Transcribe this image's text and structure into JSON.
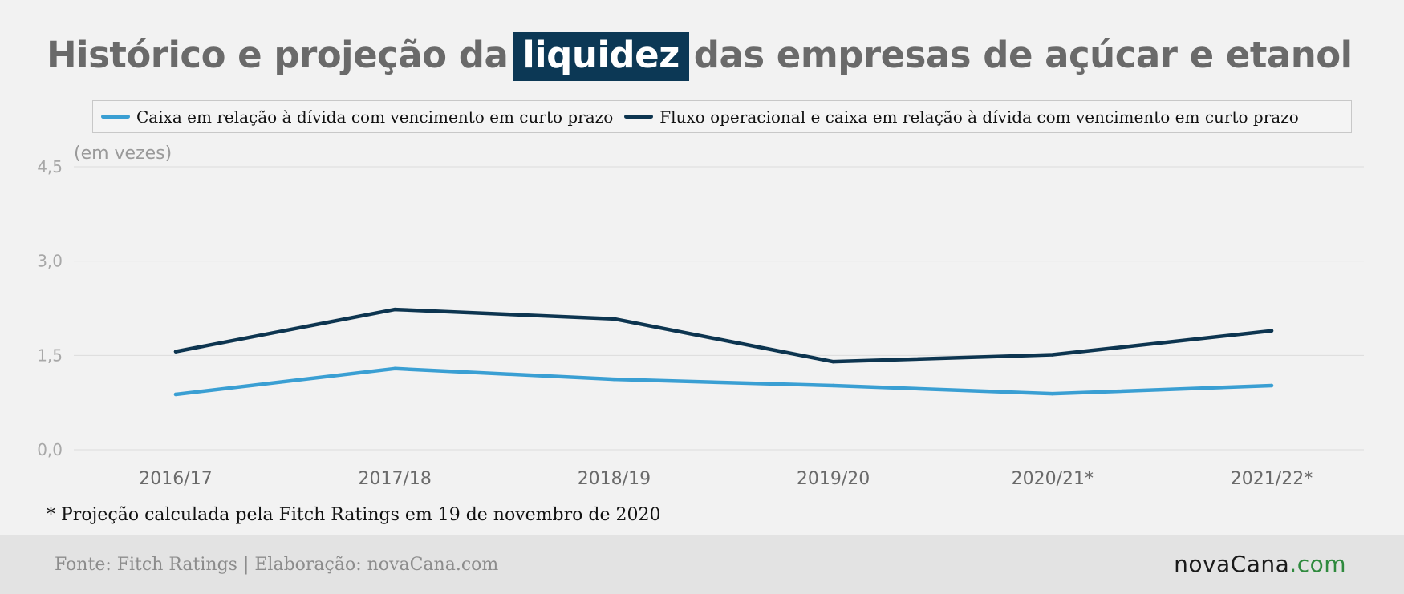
{
  "title": {
    "before": "Histórico e projeção da",
    "highlight": "liquidez",
    "after": "das empresas de açúcar e etanol"
  },
  "note": "* Projeção calculada pela Fitch Ratings em 19 de novembro de 2020",
  "footer": {
    "source": "Fonte: Fitch Ratings | Elaboração: novaCana.com",
    "logo_main": "novaCana",
    "logo_tld": ".com"
  },
  "colors": {
    "series_light": "#3a9fd3",
    "series_dark": "#0d3550",
    "title_highlight": "#0c3855",
    "logo_tld": "#2f8a3e"
  },
  "chart_data": {
    "type": "line",
    "title": "Histórico e projeção da liquidez das empresas de açúcar e etanol",
    "ylabel": "(em vezes)",
    "categories": [
      "2016/17",
      "2017/18",
      "2018/19",
      "2019/20",
      "2020/21*",
      "2021/22*"
    ],
    "yticks": [
      "0,0",
      "1,5",
      "3,0",
      "4,5"
    ],
    "ytick_values": [
      0,
      1.5,
      3.0,
      4.5
    ],
    "ylim": [
      0,
      4.5
    ],
    "grid": true,
    "legend_position": "top",
    "series": [
      {
        "name": "Caixa em relação à dívida com vencimento em curto prazo",
        "color": "#3a9fd3",
        "values": [
          0.88,
          1.29,
          1.12,
          1.02,
          0.89,
          1.02
        ]
      },
      {
        "name": "Fluxo operacional e caixa em relação à dívida com vencimento em curto prazo",
        "color": "#0d3550",
        "values": [
          1.56,
          2.23,
          2.08,
          1.4,
          1.51,
          1.89
        ]
      }
    ]
  }
}
